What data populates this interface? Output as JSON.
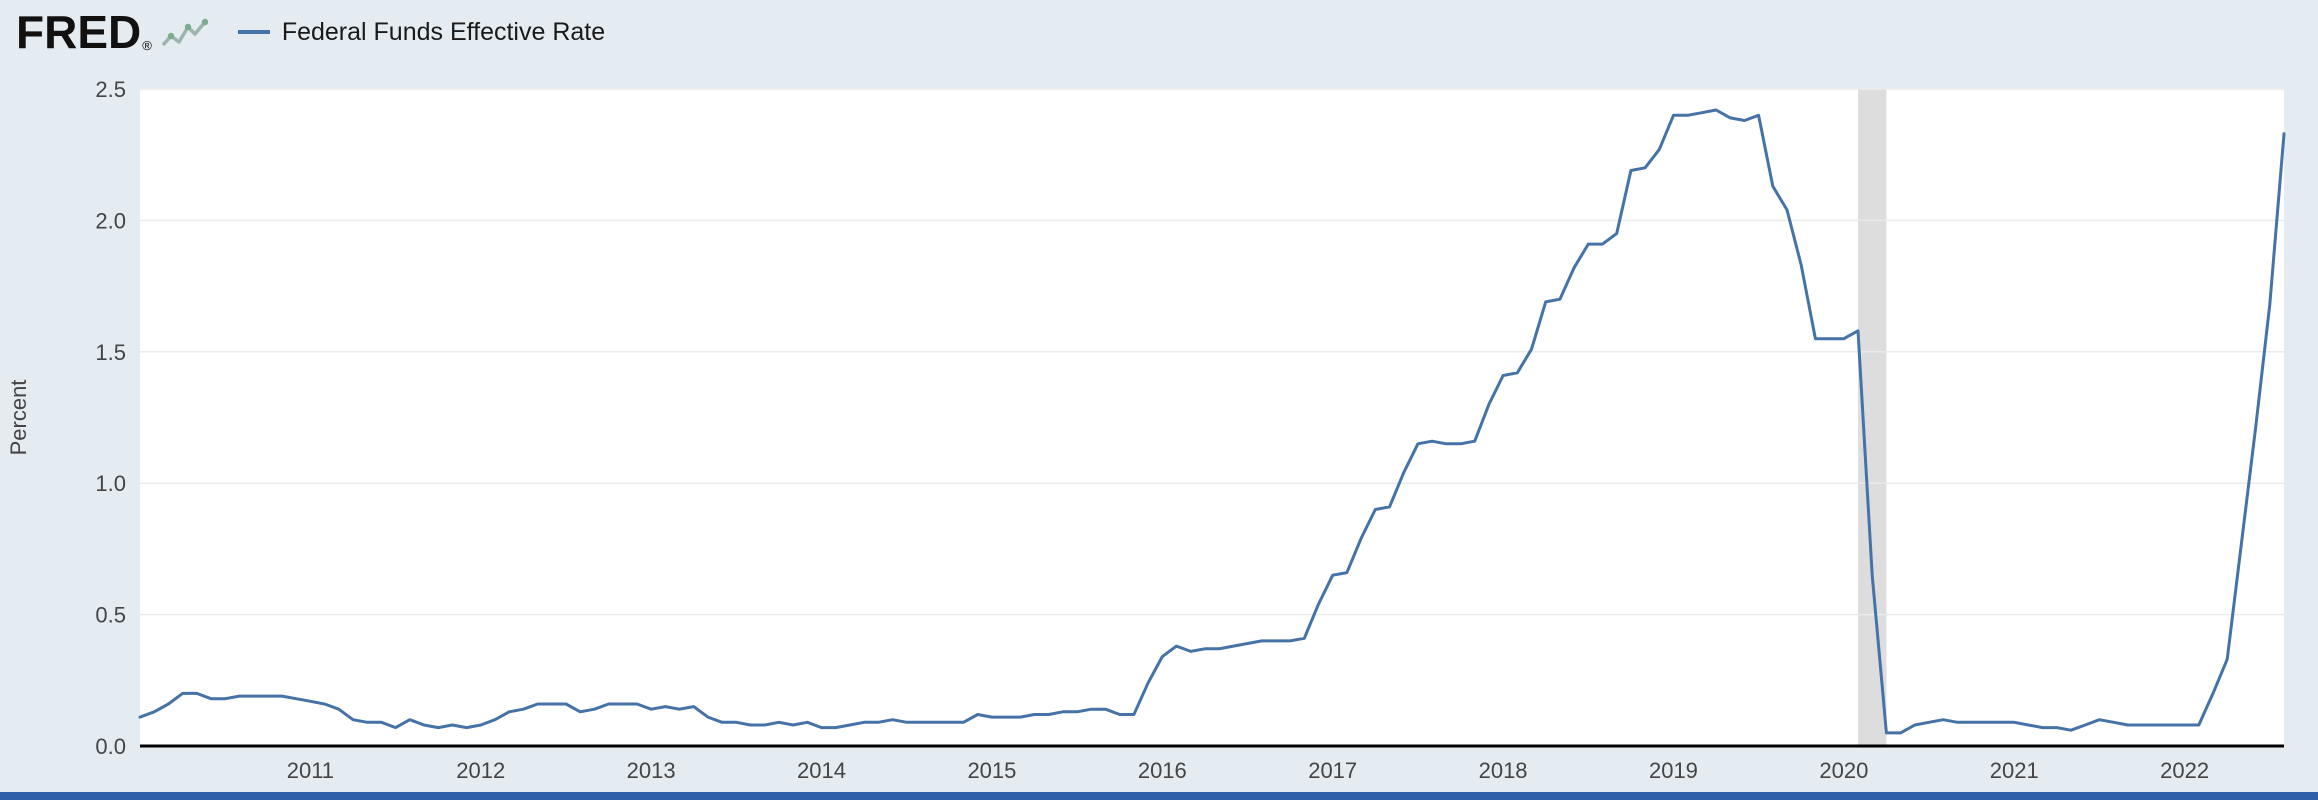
{
  "header": {
    "logo": "FRED",
    "logo_registered": "®"
  },
  "colors": {
    "background": "#e4ecf2",
    "plot_background": "#ffffff",
    "line": "#4572a7",
    "gridline": "#ebebeb",
    "recession_band": "#dddddd",
    "axis_text": "#444444",
    "baseline": "#000000",
    "footer_bar": "#2f5fa8"
  },
  "chart_data": {
    "type": "line",
    "title": "Federal Funds Effective Rate",
    "xlabel": "",
    "ylabel": "Percent",
    "ylim": [
      0.0,
      2.5
    ],
    "y_ticks": [
      0.0,
      0.5,
      1.0,
      1.5,
      2.0,
      2.5
    ],
    "x_ticks": [
      2011,
      2012,
      2013,
      2014,
      2015,
      2016,
      2017,
      2018,
      2019,
      2020,
      2021,
      2022
    ],
    "grid": "horizontal",
    "legend_position": "top-left",
    "frequency": "monthly",
    "start": "2010-01",
    "end": "2022-08",
    "recession_bands": [
      {
        "start": 2020.0833,
        "end": 2020.25
      }
    ],
    "series": [
      {
        "name": "Federal Funds Effective Rate",
        "color": "#4572a7",
        "values": [
          0.11,
          0.13,
          0.16,
          0.2,
          0.2,
          0.18,
          0.18,
          0.19,
          0.19,
          0.19,
          0.19,
          0.18,
          0.17,
          0.16,
          0.14,
          0.1,
          0.09,
          0.09,
          0.07,
          0.1,
          0.08,
          0.07,
          0.08,
          0.07,
          0.08,
          0.1,
          0.13,
          0.14,
          0.16,
          0.16,
          0.16,
          0.13,
          0.14,
          0.16,
          0.16,
          0.16,
          0.14,
          0.15,
          0.14,
          0.15,
          0.11,
          0.09,
          0.09,
          0.08,
          0.08,
          0.09,
          0.08,
          0.09,
          0.07,
          0.07,
          0.08,
          0.09,
          0.09,
          0.1,
          0.09,
          0.09,
          0.09,
          0.09,
          0.09,
          0.12,
          0.11,
          0.11,
          0.11,
          0.12,
          0.12,
          0.13,
          0.13,
          0.14,
          0.14,
          0.12,
          0.12,
          0.24,
          0.34,
          0.38,
          0.36,
          0.37,
          0.37,
          0.38,
          0.39,
          0.4,
          0.4,
          0.4,
          0.41,
          0.54,
          0.65,
          0.66,
          0.79,
          0.9,
          0.91,
          1.04,
          1.15,
          1.16,
          1.15,
          1.15,
          1.16,
          1.3,
          1.41,
          1.42,
          1.51,
          1.69,
          1.7,
          1.82,
          1.91,
          1.91,
          1.95,
          2.19,
          2.2,
          2.27,
          2.4,
          2.4,
          2.41,
          2.42,
          2.39,
          2.38,
          2.4,
          2.13,
          2.04,
          1.83,
          1.55,
          1.55,
          1.55,
          1.58,
          0.65,
          0.05,
          0.05,
          0.08,
          0.09,
          0.1,
          0.09,
          0.09,
          0.09,
          0.09,
          0.09,
          0.08,
          0.07,
          0.07,
          0.06,
          0.08,
          0.1,
          0.09,
          0.08,
          0.08,
          0.08,
          0.08,
          0.08,
          0.08,
          0.2,
          0.33,
          0.77,
          1.21,
          1.68,
          2.33
        ]
      }
    ]
  }
}
